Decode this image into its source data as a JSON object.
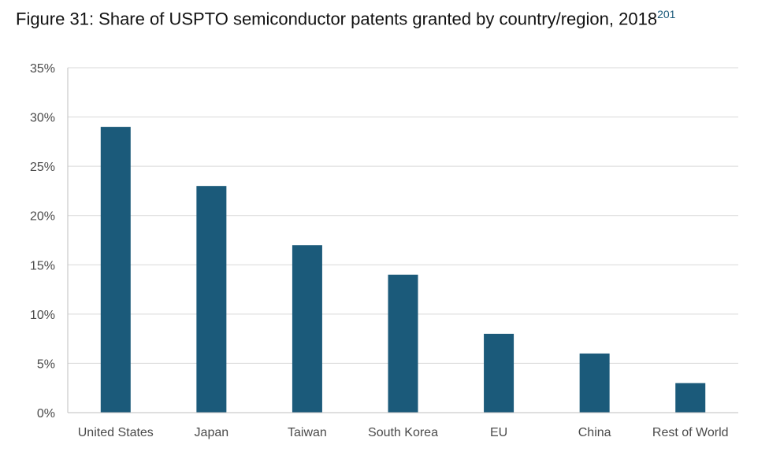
{
  "title": {
    "text": "Figure 31: Share of USPTO semiconductor patents granted by country/region, 2018",
    "footnote": "201"
  },
  "colors": {
    "bar": "#1b5a7a",
    "grid": "#d9d9d9",
    "axis": "#bfbfbf"
  },
  "chart_data": {
    "type": "bar",
    "categories": [
      "United States",
      "Japan",
      "Taiwan",
      "South Korea",
      "EU",
      "China",
      "Rest of World"
    ],
    "values": [
      29,
      23,
      17,
      14,
      8,
      6,
      3
    ],
    "ylim": [
      0,
      35
    ],
    "yticks": [
      0,
      5,
      10,
      15,
      20,
      25,
      30,
      35
    ],
    "ytick_labels": [
      "0%",
      "5%",
      "10%",
      "15%",
      "20%",
      "25%",
      "30%",
      "35%"
    ],
    "value_unit": "%",
    "grid": true,
    "legend": false
  }
}
